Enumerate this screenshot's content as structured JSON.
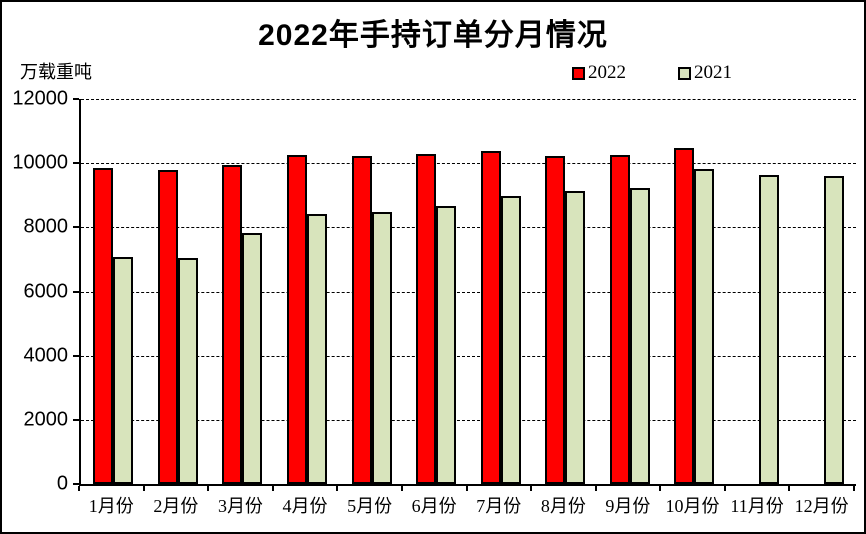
{
  "title": "2022年手持订单分月情况",
  "unit_label": "万载重吨",
  "legend": [
    {
      "label": "2022",
      "color": "#FF0000"
    },
    {
      "label": "2021",
      "color": "#D8E4BC"
    }
  ],
  "chart_data": {
    "type": "bar",
    "title": "2022年手持订单分月情况",
    "ylabel": "万载重吨",
    "xlabel": "",
    "categories": [
      "1月份",
      "2月份",
      "3月份",
      "4月份",
      "5月份",
      "6月份",
      "7月份",
      "8月份",
      "9月份",
      "10月份",
      "11月份",
      "12月份"
    ],
    "series": [
      {
        "name": "2022",
        "color": "#FF0000",
        "values": [
          9850,
          9800,
          9930,
          10260,
          10220,
          10290,
          10380,
          10210,
          10260,
          10470,
          null,
          null
        ]
      },
      {
        "name": "2021",
        "color": "#D8E4BC",
        "values": [
          7080,
          7050,
          7830,
          8430,
          8480,
          8680,
          8970,
          9140,
          9230,
          9820,
          9640,
          9590
        ]
      }
    ],
    "ylim": [
      0,
      12000
    ],
    "yticks": [
      0,
      2000,
      4000,
      6000,
      8000,
      10000,
      12000
    ],
    "grid": "horizontal-dashed",
    "legend_position": "top-right",
    "bar_outline_color": "#000000"
  }
}
